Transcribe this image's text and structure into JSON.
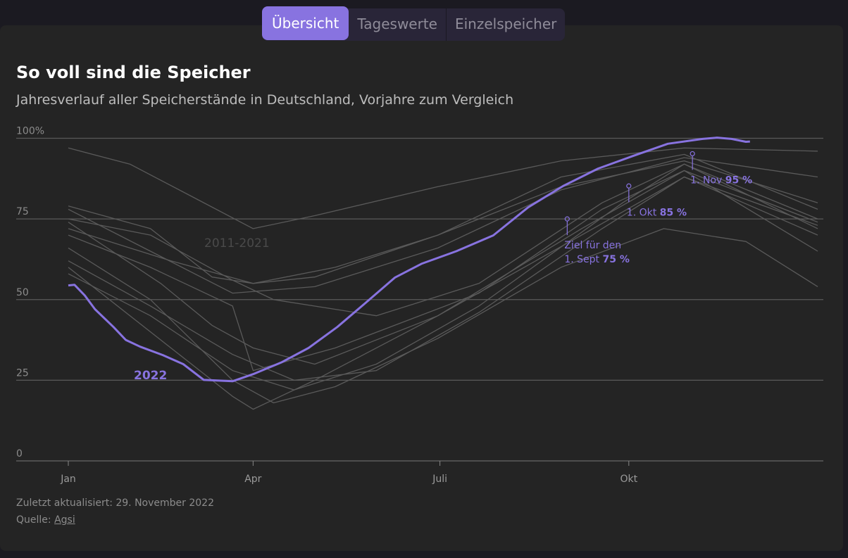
{
  "tabs": [
    {
      "label": "Übersicht",
      "active": true
    },
    {
      "label": "Tageswerte",
      "active": false
    },
    {
      "label": "Einzelspeicher",
      "active": false
    }
  ],
  "title": "So voll sind die Speicher",
  "subtitle": "Jahresverlauf aller Speicherstände in Deutschland, Vorjahre zum Vergleich",
  "footer": {
    "updated": "Zuletzt aktualisiert: 29. November 2022",
    "source_label": "Quelle:",
    "source_link": "Agsi"
  },
  "chart_data": {
    "type": "line",
    "ylim": [
      0,
      100
    ],
    "yticks": [
      {
        "v": 0,
        "label": "0"
      },
      {
        "v": 25,
        "label": "25"
      },
      {
        "v": 50,
        "label": "50"
      },
      {
        "v": 75,
        "label": "75"
      },
      {
        "v": 100,
        "label": "100%"
      }
    ],
    "xticks": [
      {
        "day": 0,
        "label": "Jan"
      },
      {
        "day": 90,
        "label": "Apr"
      },
      {
        "day": 181,
        "label": "Juli"
      },
      {
        "day": 273,
        "label": "Okt"
      }
    ],
    "x_unit": "day of year",
    "colors": {
      "highlight": "#8873e0",
      "comparison": "#5a5a5a",
      "grid": "#5a5a5a"
    },
    "comparison_label": "2011-2021",
    "highlight": {
      "name": "2022",
      "points": [
        [
          0,
          54.4
        ],
        [
          3,
          54.6
        ],
        [
          8,
          51.3
        ],
        [
          13,
          47
        ],
        [
          22,
          41.5
        ],
        [
          28,
          37.5
        ],
        [
          35,
          35.4
        ],
        [
          46,
          32.8
        ],
        [
          56,
          30
        ],
        [
          66,
          25.1
        ],
        [
          80,
          24.7
        ],
        [
          90,
          26.9
        ],
        [
          104,
          30.6
        ],
        [
          117,
          35
        ],
        [
          131,
          41.5
        ],
        [
          145,
          49.1
        ],
        [
          159,
          56.8
        ],
        [
          172,
          61.1
        ],
        [
          189,
          65
        ],
        [
          207,
          69.9
        ],
        [
          224,
          78.6
        ],
        [
          241,
          85.2
        ],
        [
          258,
          90.6
        ],
        [
          275,
          94.5
        ],
        [
          292,
          98.3
        ],
        [
          309,
          99.8
        ],
        [
          316,
          100.2
        ],
        [
          323,
          99.8
        ],
        [
          330,
          98.9
        ],
        [
          332,
          99
        ]
      ]
    },
    "comparison_series": [
      [
        [
          0,
          97
        ],
        [
          30,
          92
        ],
        [
          60,
          82
        ],
        [
          90,
          72
        ],
        [
          120,
          76
        ],
        [
          180,
          85
        ],
        [
          240,
          93
        ],
        [
          300,
          97
        ],
        [
          365,
          96
        ]
      ],
      [
        [
          0,
          79
        ],
        [
          40,
          72
        ],
        [
          70,
          57
        ],
        [
          90,
          55
        ],
        [
          120,
          57
        ],
        [
          180,
          70
        ],
        [
          240,
          88
        ],
        [
          300,
          95
        ],
        [
          365,
          78
        ]
      ],
      [
        [
          0,
          75
        ],
        [
          40,
          70
        ],
        [
          80,
          56
        ],
        [
          100,
          50
        ],
        [
          150,
          45
        ],
        [
          200,
          55
        ],
        [
          260,
          80
        ],
        [
          300,
          92
        ],
        [
          365,
          75
        ]
      ],
      [
        [
          0,
          74
        ],
        [
          45,
          55
        ],
        [
          70,
          42
        ],
        [
          90,
          35
        ],
        [
          120,
          30
        ],
        [
          180,
          45
        ],
        [
          250,
          70
        ],
        [
          300,
          88
        ],
        [
          365,
          73
        ]
      ],
      [
        [
          0,
          66
        ],
        [
          40,
          50
        ],
        [
          80,
          25
        ],
        [
          100,
          18
        ],
        [
          130,
          23
        ],
        [
          180,
          38
        ],
        [
          240,
          60
        ],
        [
          290,
          72
        ],
        [
          330,
          68
        ],
        [
          365,
          54
        ]
      ],
      [
        [
          0,
          60
        ],
        [
          40,
          40
        ],
        [
          80,
          20
        ],
        [
          90,
          16
        ],
        [
          120,
          25
        ],
        [
          180,
          45
        ],
        [
          250,
          72
        ],
        [
          300,
          90
        ],
        [
          365,
          65
        ]
      ],
      [
        [
          0,
          72
        ],
        [
          50,
          62
        ],
        [
          90,
          55
        ],
        [
          130,
          60
        ],
        [
          180,
          70
        ],
        [
          240,
          85
        ],
        [
          300,
          93
        ],
        [
          365,
          80
        ]
      ],
      [
        [
          0,
          70
        ],
        [
          40,
          60
        ],
        [
          80,
          48
        ],
        [
          90,
          28
        ],
        [
          130,
          35
        ],
        [
          200,
          52
        ],
        [
          260,
          78
        ],
        [
          300,
          90
        ],
        [
          365,
          74
        ]
      ],
      [
        [
          0,
          78
        ],
        [
          40,
          65
        ],
        [
          80,
          52
        ],
        [
          120,
          54
        ],
        [
          180,
          66
        ],
        [
          240,
          84
        ],
        [
          300,
          94
        ],
        [
          365,
          88
        ]
      ],
      [
        [
          0,
          62
        ],
        [
          40,
          48
        ],
        [
          80,
          33
        ],
        [
          110,
          25
        ],
        [
          150,
          28
        ],
        [
          200,
          46
        ],
        [
          260,
          72
        ],
        [
          300,
          88
        ],
        [
          365,
          70
        ]
      ],
      [
        [
          0,
          58
        ],
        [
          40,
          45
        ],
        [
          80,
          28
        ],
        [
          110,
          22
        ],
        [
          150,
          30
        ],
        [
          200,
          48
        ],
        [
          270,
          80
        ],
        [
          300,
          92
        ],
        [
          365,
          72
        ]
      ]
    ],
    "annotations": [
      {
        "day": 243,
        "value": 75,
        "line1": "Ziel für den",
        "line2": "1. Sept",
        "target": "75 %"
      },
      {
        "day": 273,
        "value": 85,
        "line1": "",
        "line2": "1. Okt",
        "target": "85 %"
      },
      {
        "day": 304,
        "value": 95,
        "line1": "",
        "line2": "1. Nov",
        "target": "95 %"
      }
    ]
  }
}
